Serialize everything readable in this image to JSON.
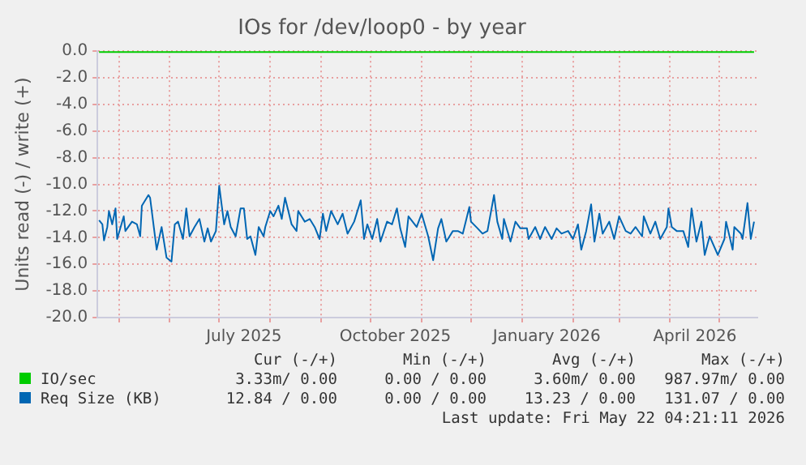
{
  "chart_data": {
    "type": "line",
    "title": "IOs for /dev/loop0 - by year",
    "ylabel": "Units read (-) / write (+)",
    "xlim": [
      "2025-04-18",
      "2026-05-24"
    ],
    "xticks": [
      {
        "value": "2025-05-01",
        "label": null
      },
      {
        "value": "2025-06-01",
        "label": null
      },
      {
        "value": "2025-07-01",
        "label": null
      },
      {
        "value": "2025-07-16",
        "label": "July 2025"
      },
      {
        "value": "2025-08-01",
        "label": null
      },
      {
        "value": "2025-09-01",
        "label": null
      },
      {
        "value": "2025-10-01",
        "label": null
      },
      {
        "value": "2025-10-16",
        "label": "October 2025"
      },
      {
        "value": "2025-11-01",
        "label": null
      },
      {
        "value": "2025-12-01",
        "label": null
      },
      {
        "value": "2026-01-01",
        "label": null
      },
      {
        "value": "2026-01-16",
        "label": "January 2026"
      },
      {
        "value": "2026-02-01",
        "label": null
      },
      {
        "value": "2026-03-01",
        "label": null
      },
      {
        "value": "2026-04-01",
        "label": null
      },
      {
        "value": "2026-04-16",
        "label": "April 2026"
      },
      {
        "value": "2026-05-01",
        "label": null
      }
    ],
    "ylim": [
      -20,
      0
    ],
    "yticks": [
      {
        "value": 0,
        "label": "0.0"
      },
      {
        "value": -2,
        "label": "-2.0"
      },
      {
        "value": -4,
        "label": "-4.0"
      },
      {
        "value": -6,
        "label": "-6.0"
      },
      {
        "value": -8,
        "label": "-8.0"
      },
      {
        "value": -10,
        "label": "-10.0"
      },
      {
        "value": -12,
        "label": "-12.0"
      },
      {
        "value": -14,
        "label": "-14.0"
      },
      {
        "value": -16,
        "label": "-16.0"
      },
      {
        "value": -18,
        "label": "-18.0"
      },
      {
        "value": -20,
        "label": "-20.0"
      }
    ],
    "grid": true,
    "legend": "bottom left",
    "marker": "none",
    "line_style": "solid",
    "series": [
      {
        "name": "IO/sec",
        "color": "#00cc00",
        "x": [
          "2025-04-19",
          "2026-05-22"
        ],
        "values": [
          0,
          0
        ]
      },
      {
        "name": "Req Size (KB)",
        "color": "#0066b3",
        "x": [
          "2025-04-19",
          "2025-04-21",
          "2025-04-22",
          "2025-04-24",
          "2025-04-25",
          "2025-04-27",
          "2025-04-29",
          "2025-04-30",
          "2025-05-04",
          "2025-05-05",
          "2025-05-09",
          "2025-05-12",
          "2025-05-14",
          "2025-05-15",
          "2025-05-19",
          "2025-05-20",
          "2025-05-24",
          "2025-05-27",
          "2025-05-30",
          "2025-06-02",
          "2025-06-04",
          "2025-06-06",
          "2025-06-09",
          "2025-06-11",
          "2025-06-13",
          "2025-06-16",
          "2025-06-19",
          "2025-06-22",
          "2025-06-24",
          "2025-06-26",
          "2025-06-29",
          "2025-07-01",
          "2025-07-04",
          "2025-07-06",
          "2025-07-08",
          "2025-07-11",
          "2025-07-14",
          "2025-07-16",
          "2025-07-18",
          "2025-07-20",
          "2025-07-23",
          "2025-07-25",
          "2025-07-28",
          "2025-07-29",
          "2025-08-01",
          "2025-08-03",
          "2025-08-06",
          "2025-08-08",
          "2025-08-10",
          "2025-08-12",
          "2025-08-14",
          "2025-08-17",
          "2025-08-18",
          "2025-08-22",
          "2025-08-25",
          "2025-08-28",
          "2025-08-31",
          "2025-09-02",
          "2025-09-04",
          "2025-09-07",
          "2025-09-11",
          "2025-09-14",
          "2025-09-17",
          "2025-09-21",
          "2025-09-25",
          "2025-09-27",
          "2025-09-29",
          "2025-10-02",
          "2025-10-05",
          "2025-10-07",
          "2025-10-11",
          "2025-10-14",
          "2025-10-17",
          "2025-10-19",
          "2025-10-22",
          "2025-10-24",
          "2025-10-29",
          "2025-11-01",
          "2025-11-05",
          "2025-11-08",
          "2025-11-11",
          "2025-11-13",
          "2025-11-16",
          "2025-11-20",
          "2025-11-23",
          "2025-11-26",
          "2025-11-30",
          "2025-12-01",
          "2025-12-05",
          "2025-12-08",
          "2025-12-11",
          "2025-12-15",
          "2025-12-17",
          "2025-12-20",
          "2025-12-21",
          "2025-12-25",
          "2025-12-28",
          "2025-12-31",
          "2026-01-04",
          "2026-01-05",
          "2026-01-09",
          "2026-01-12",
          "2026-01-15",
          "2026-01-19",
          "2026-01-22",
          "2026-01-25",
          "2026-01-29",
          "2026-02-01",
          "2026-02-04",
          "2026-02-06",
          "2026-02-09",
          "2026-02-12",
          "2026-02-14",
          "2026-02-17",
          "2026-02-19",
          "2026-02-23",
          "2026-02-26",
          "2026-03-01",
          "2026-03-05",
          "2026-03-08",
          "2026-03-11",
          "2026-03-15",
          "2026-03-16",
          "2026-03-20",
          "2026-03-23",
          "2026-03-26",
          "2026-03-30",
          "2026-03-31",
          "2026-04-02",
          "2026-04-05",
          "2026-04-09",
          "2026-04-12",
          "2026-04-14",
          "2026-04-17",
          "2026-04-20",
          "2026-04-22",
          "2026-04-25",
          "2026-04-30",
          "2026-05-04",
          "2026-05-05",
          "2026-05-09",
          "2026-05-10",
          "2026-05-14",
          "2026-05-15",
          "2026-05-18",
          "2026-05-20",
          "2026-05-22"
        ],
        "values": [
          -12.7,
          -13.0,
          -14.2,
          -13.2,
          -12.0,
          -13.0,
          -11.8,
          -14.1,
          -12.4,
          -13.5,
          -12.8,
          -13.0,
          -13.9,
          -11.6,
          -10.8,
          -11.0,
          -14.9,
          -13.2,
          -15.5,
          -15.8,
          -13.0,
          -12.8,
          -14.1,
          -11.8,
          -13.9,
          -13.2,
          -12.6,
          -14.3,
          -13.3,
          -14.3,
          -13.5,
          -10.1,
          -13.0,
          -12.0,
          -13.2,
          -13.9,
          -11.8,
          -11.8,
          -14.1,
          -13.9,
          -15.3,
          -13.2,
          -13.9,
          -13.2,
          -12.0,
          -12.4,
          -11.6,
          -12.6,
          -11.0,
          -12.0,
          -13.0,
          -13.5,
          -12.0,
          -12.8,
          -12.6,
          -13.2,
          -14.1,
          -12.2,
          -13.5,
          -12.0,
          -13.0,
          -12.2,
          -13.7,
          -12.8,
          -11.2,
          -14.1,
          -13.0,
          -14.1,
          -12.6,
          -14.3,
          -12.8,
          -13.0,
          -11.8,
          -13.3,
          -14.7,
          -12.4,
          -13.2,
          -12.2,
          -13.9,
          -15.7,
          -13.3,
          -12.6,
          -14.3,
          -13.5,
          -13.5,
          -13.7,
          -11.7,
          -12.8,
          -13.3,
          -13.7,
          -13.5,
          -10.8,
          -12.8,
          -14.1,
          -12.6,
          -14.3,
          -12.8,
          -13.3,
          -13.3,
          -14.1,
          -13.2,
          -14.1,
          -13.2,
          -14.1,
          -13.3,
          -13.7,
          -13.5,
          -14.1,
          -13.0,
          -14.9,
          -13.5,
          -11.5,
          -14.3,
          -12.2,
          -13.7,
          -12.8,
          -14.1,
          -12.4,
          -13.5,
          -13.7,
          -13.2,
          -13.9,
          -12.4,
          -13.7,
          -12.8,
          -14.1,
          -13.2,
          -11.8,
          -13.2,
          -13.5,
          -13.5,
          -14.7,
          -11.8,
          -14.3,
          -12.8,
          -15.3,
          -13.9,
          -15.3,
          -14.1,
          -12.8,
          -14.9,
          -13.2,
          -13.7,
          -14.1,
          -11.4,
          -14.1,
          -12.8
        ]
      }
    ],
    "annotations": [
      "Cur (-/+)",
      "Min (-/+)",
      "Avg (-/+)",
      "Max (-/+)",
      "3.33m/ 0.00",
      "0.00 / 0.00",
      "3.60m/ 0.00",
      "987.97m/ 0.00",
      "12.84 / 0.00",
      "0.00 / 0.00",
      "13.23 / 0.00",
      "131.07 / 0.00",
      "Last update: Fri May 22 04:21:11 2026"
    ]
  }
}
